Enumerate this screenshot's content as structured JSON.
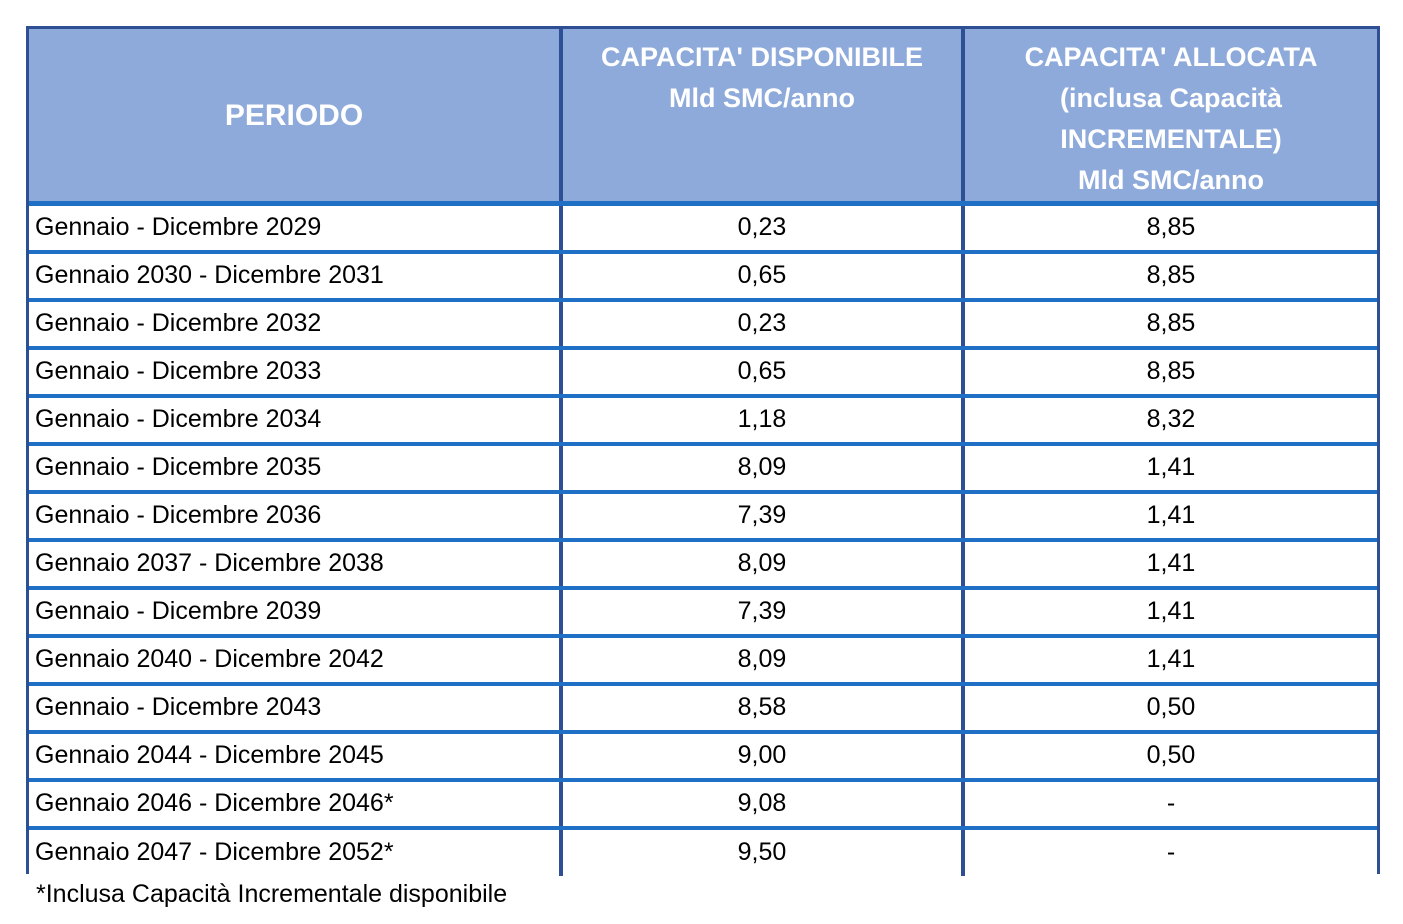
{
  "header": {
    "periodo": "PERIODO",
    "disponibile": [
      "CAPACITA' DISPONIBILE",
      "Mld SMC/anno"
    ],
    "allocata": [
      "CAPACITA' ALLOCATA",
      "(inclusa Capacità",
      "INCREMENTALE)",
      "Mld SMC/anno"
    ]
  },
  "rows": [
    {
      "periodo": "Gennaio - Dicembre 2029",
      "disponibile": "0,23",
      "allocata": "8,85"
    },
    {
      "periodo": "Gennaio 2030 - Dicembre 2031",
      "disponibile": "0,65",
      "allocata": "8,85"
    },
    {
      "periodo": "Gennaio - Dicembre 2032",
      "disponibile": "0,23",
      "allocata": "8,85"
    },
    {
      "periodo": "Gennaio - Dicembre 2033",
      "disponibile": "0,65",
      "allocata": "8,85"
    },
    {
      "periodo": "Gennaio - Dicembre 2034",
      "disponibile": "1,18",
      "allocata": "8,32"
    },
    {
      "periodo": "Gennaio - Dicembre 2035",
      "disponibile": "8,09",
      "allocata": "1,41"
    },
    {
      "periodo": "Gennaio - Dicembre 2036",
      "disponibile": "7,39",
      "allocata": "1,41"
    },
    {
      "periodo": "Gennaio 2037 - Dicembre 2038",
      "disponibile": "8,09",
      "allocata": "1,41"
    },
    {
      "periodo": "Gennaio - Dicembre 2039",
      "disponibile": "7,39",
      "allocata": "1,41"
    },
    {
      "periodo": "Gennaio 2040 - Dicembre 2042",
      "disponibile": "8,09",
      "allocata": "1,41"
    },
    {
      "periodo": "Gennaio - Dicembre 2043",
      "disponibile": "8,58",
      "allocata": "0,50"
    },
    {
      "periodo": "Gennaio 2044 - Dicembre 2045",
      "disponibile": "9,00",
      "allocata": "0,50"
    },
    {
      "periodo": "Gennaio 2046 - Dicembre 2046*",
      "disponibile": "9,08",
      "allocata": "-"
    },
    {
      "periodo": "Gennaio 2047 - Dicembre 2052*",
      "disponibile": "9,50",
      "allocata": "-"
    }
  ],
  "footnote": "*Inclusa Capacità Incrementale disponibile",
  "colors": {
    "header_bg": "#8eaadb",
    "outer_border": "#2e4f93",
    "row_separator": "#1f6fc4",
    "header_text": "#ffffff"
  }
}
